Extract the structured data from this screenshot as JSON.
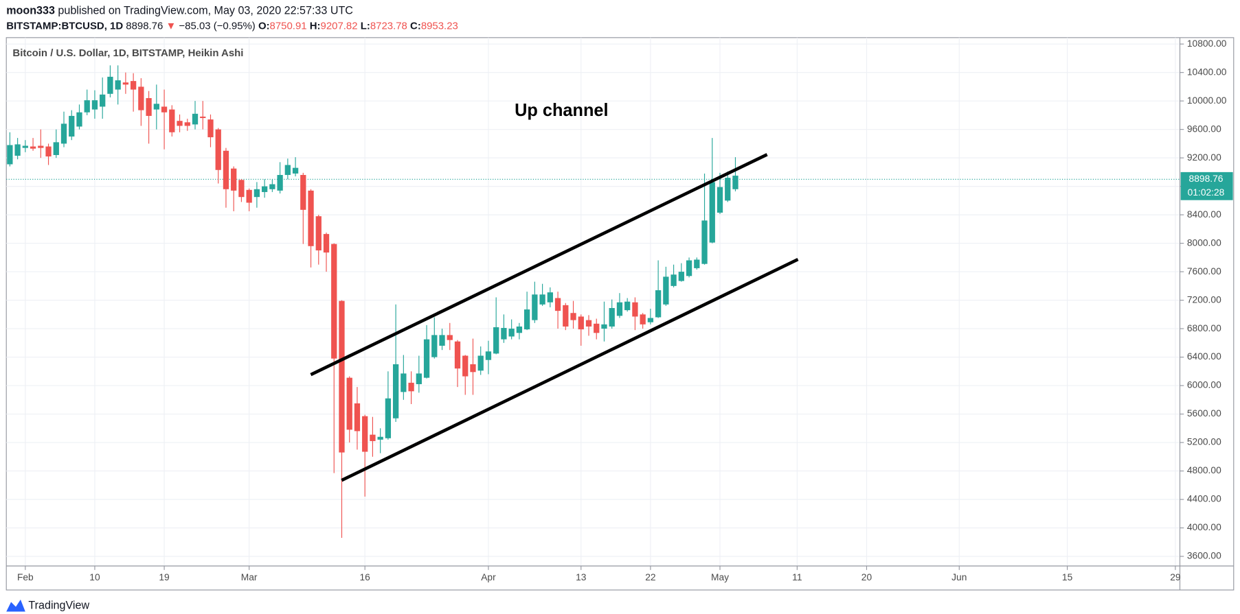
{
  "header": {
    "user": "moon333",
    "published": "published on TradingView.com, May 03, 2020 22:57:33 UTC",
    "symbol": "BITSTAMP:BTCUSD, 1D",
    "price": "8898.76",
    "arrow": "▼",
    "change": "−85.03 (−0.95%)",
    "o_label": "O:",
    "o": "8750.91",
    "h_label": "H:",
    "h": "9207.82",
    "l_label": "L:",
    "l": "8723.78",
    "c_label": "C:",
    "c": "8953.23"
  },
  "footer": {
    "brand": "TradingView"
  },
  "chart_data": {
    "type": "candlestick",
    "title": "Bitcoin / U.S. Dollar, 1D, BITSTAMP, Heikin Ashi",
    "annotation": "Up channel",
    "up_color": "#26a69a",
    "down_color": "#ef5350",
    "last_price": 8898.76,
    "last_price_label": "8898.76",
    "countdown": "01:02:28",
    "xlim": [
      "2020-01-29",
      "2020-06-30"
    ],
    "xticks": [
      {
        "value": "2020-02-01",
        "label": "Feb"
      },
      {
        "value": "2020-02-10",
        "label": "10"
      },
      {
        "value": "2020-02-19",
        "label": "19"
      },
      {
        "value": "2020-03-01",
        "label": "Mar"
      },
      {
        "value": "2020-03-16",
        "label": "16"
      },
      {
        "value": "2020-04-01",
        "label": "Apr"
      },
      {
        "value": "2020-04-13",
        "label": "13"
      },
      {
        "value": "2020-04-22",
        "label": "22"
      },
      {
        "value": "2020-05-01",
        "label": "May"
      },
      {
        "value": "2020-05-11",
        "label": "11"
      },
      {
        "value": "2020-05-20",
        "label": "20"
      },
      {
        "value": "2020-06-01",
        "label": "Jun"
      },
      {
        "value": "2020-06-15",
        "label": "15"
      },
      {
        "value": "2020-06-29",
        "label": "29"
      }
    ],
    "ylim": [
      3465,
      10890
    ],
    "yticks": [
      {
        "value": 3600,
        "label": "3600.00"
      },
      {
        "value": 4000,
        "label": "4000.00"
      },
      {
        "value": 4400,
        "label": "4400.00"
      },
      {
        "value": 4800,
        "label": "4800.00"
      },
      {
        "value": 5200,
        "label": "5200.00"
      },
      {
        "value": 5600,
        "label": "5600.00"
      },
      {
        "value": 6000,
        "label": "6000.00"
      },
      {
        "value": 6400,
        "label": "6400.00"
      },
      {
        "value": 6800,
        "label": "6800.00"
      },
      {
        "value": 7200,
        "label": "7200.00"
      },
      {
        "value": 7600,
        "label": "7600.00"
      },
      {
        "value": 8000,
        "label": "8000.00"
      },
      {
        "value": 8400,
        "label": "8400.00"
      },
      {
        "value": 8800,
        "label": "8800.00"
      },
      {
        "value": 9200,
        "label": "9200.00"
      },
      {
        "value": 9600,
        "label": "9600.00"
      },
      {
        "value": 10000,
        "label": "10000.00"
      },
      {
        "value": 10400,
        "label": "10400.00"
      },
      {
        "value": 10800,
        "label": "10800.00"
      }
    ],
    "grid": true,
    "x": [
      "2020-01-30",
      "2020-01-31",
      "2020-02-01",
      "2020-02-02",
      "2020-02-03",
      "2020-02-04",
      "2020-02-05",
      "2020-02-06",
      "2020-02-07",
      "2020-02-08",
      "2020-02-09",
      "2020-02-10",
      "2020-02-11",
      "2020-02-12",
      "2020-02-13",
      "2020-02-14",
      "2020-02-15",
      "2020-02-16",
      "2020-02-17",
      "2020-02-18",
      "2020-02-19",
      "2020-02-20",
      "2020-02-21",
      "2020-02-22",
      "2020-02-23",
      "2020-02-24",
      "2020-02-25",
      "2020-02-26",
      "2020-02-27",
      "2020-02-28",
      "2020-02-29",
      "2020-03-01",
      "2020-03-02",
      "2020-03-03",
      "2020-03-04",
      "2020-03-05",
      "2020-03-06",
      "2020-03-07",
      "2020-03-08",
      "2020-03-09",
      "2020-03-10",
      "2020-03-11",
      "2020-03-12",
      "2020-03-13",
      "2020-03-14",
      "2020-03-15",
      "2020-03-16",
      "2020-03-17",
      "2020-03-18",
      "2020-03-19",
      "2020-03-20",
      "2020-03-21",
      "2020-03-22",
      "2020-03-23",
      "2020-03-24",
      "2020-03-25",
      "2020-03-26",
      "2020-03-27",
      "2020-03-28",
      "2020-03-29",
      "2020-03-30",
      "2020-03-31",
      "2020-04-01",
      "2020-04-02",
      "2020-04-03",
      "2020-04-04",
      "2020-04-05",
      "2020-04-06",
      "2020-04-07",
      "2020-04-08",
      "2020-04-09",
      "2020-04-10",
      "2020-04-11",
      "2020-04-12",
      "2020-04-13",
      "2020-04-14",
      "2020-04-15",
      "2020-04-16",
      "2020-04-17",
      "2020-04-18",
      "2020-04-19",
      "2020-04-20",
      "2020-04-21",
      "2020-04-22",
      "2020-04-23",
      "2020-04-24",
      "2020-04-25",
      "2020-04-26",
      "2020-04-27",
      "2020-04-28",
      "2020-04-29",
      "2020-04-30",
      "2020-05-01",
      "2020-05-02",
      "2020-05-03"
    ],
    "open": [
      9110,
      9230,
      9340,
      9360,
      9370,
      9360,
      9240,
      9400,
      9500,
      9640,
      9840,
      9880,
      9920,
      10100,
      10160,
      10260,
      10280,
      10200,
      10040,
      9880,
      9920,
      9880,
      9720,
      9700,
      9670,
      9780,
      9740,
      9600,
      9300,
      9050,
      8890,
      8750,
      8650,
      8720,
      8760,
      8740,
      8960,
      8980,
      8960,
      8740,
      8380,
      8130,
      7990,
      7190,
      6110,
      5750,
      5570,
      5310,
      5240,
      5260,
      5540,
      5910,
      6040,
      6020,
      6110,
      6400,
      6560,
      6710,
      6620,
      6420,
      6300,
      6210,
      6360,
      6450,
      6650,
      6690,
      6740,
      6790,
      6920,
      7140,
      7170,
      7230,
      7130,
      7020,
      6970,
      6920,
      6870,
      6800,
      6830,
      6980,
      7060,
      7170,
      7000,
      6890,
      6960,
      7140,
      7400,
      7470,
      7540,
      7650,
      7710,
      8010,
      8430,
      8600,
      8760
    ],
    "high": [
      9560,
      9480,
      9450,
      9480,
      9600,
      9400,
      9600,
      9850,
      9870,
      9950,
      10160,
      10150,
      10330,
      10500,
      10500,
      10400,
      10390,
      10320,
      10140,
      10230,
      10160,
      9940,
      9810,
      9750,
      10000,
      10000,
      9810,
      9620,
      9340,
      9080,
      8900,
      8770,
      8860,
      8900,
      8900,
      9140,
      9190,
      9210,
      8990,
      8760,
      8400,
      8150,
      8000,
      7200,
      6130,
      5980,
      5590,
      5560,
      5400,
      6200,
      7140,
      6430,
      6200,
      6420,
      6850,
      6960,
      6800,
      6880,
      6640,
      6430,
      6660,
      6550,
      6630,
      7240,
      7000,
      6930,
      6880,
      7320,
      7460,
      7430,
      7380,
      7320,
      7160,
      7190,
      7000,
      6990,
      6940,
      7180,
      7210,
      7300,
      7230,
      7240,
      7020,
      7080,
      7760,
      7670,
      7700,
      7720,
      7800,
      7800,
      8980,
      9480,
      8990,
      9010,
      9210
    ],
    "low": [
      9080,
      9180,
      9280,
      9300,
      9200,
      9100,
      9200,
      9350,
      9450,
      9600,
      9800,
      9750,
      9750,
      10050,
      9950,
      10100,
      9850,
      9650,
      9400,
      9600,
      9320,
      9500,
      9560,
      9580,
      9600,
      9600,
      9350,
      8840,
      8500,
      8450,
      8580,
      8450,
      8500,
      8640,
      8720,
      8700,
      8900,
      8940,
      7990,
      7660,
      7700,
      7600,
      4770,
      3860,
      5200,
      5100,
      4440,
      5000,
      5050,
      5240,
      5490,
      5800,
      5740,
      5900,
      6100,
      6380,
      6500,
      6500,
      5980,
      5870,
      5870,
      6150,
      6160,
      6440,
      6600,
      6650,
      6650,
      6780,
      6880,
      7120,
      7100,
      6800,
      6780,
      6800,
      6560,
      6700,
      6650,
      6620,
      6800,
      6950,
      7040,
      6780,
      6800,
      6860,
      6950,
      7120,
      7380,
      7460,
      7520,
      7630,
      7700,
      8000,
      8410,
      8580,
      8730
    ],
    "close": [
      9380,
      9390,
      9370,
      9330,
      9340,
      9220,
      9420,
      9680,
      9790,
      9840,
      10010,
      10010,
      10090,
      10340,
      10290,
      10230,
      10160,
      9870,
      9790,
      9960,
      9840,
      9560,
      9650,
      9650,
      9820,
      9760,
      9490,
      9030,
      8760,
      8740,
      8650,
      8570,
      8760,
      8800,
      8830,
      8960,
      9100,
      9060,
      8470,
      7960,
      7900,
      7870,
      6380,
      5060,
      5380,
      5360,
      5070,
      5220,
      5280,
      5820,
      6300,
      6170,
      5920,
      6170,
      6650,
      6710,
      6710,
      6640,
      6240,
      6130,
      6190,
      6420,
      6480,
      6820,
      6810,
      6800,
      6830,
      7070,
      7280,
      7280,
      7310,
      7050,
      6830,
      6920,
      6790,
      6830,
      6740,
      6860,
      7090,
      7170,
      7180,
      6970,
      6860,
      6950,
      7340,
      7530,
      7560,
      7600,
      7760,
      7770,
      8320,
      8860,
      8790,
      8920,
      8950
    ]
  }
}
